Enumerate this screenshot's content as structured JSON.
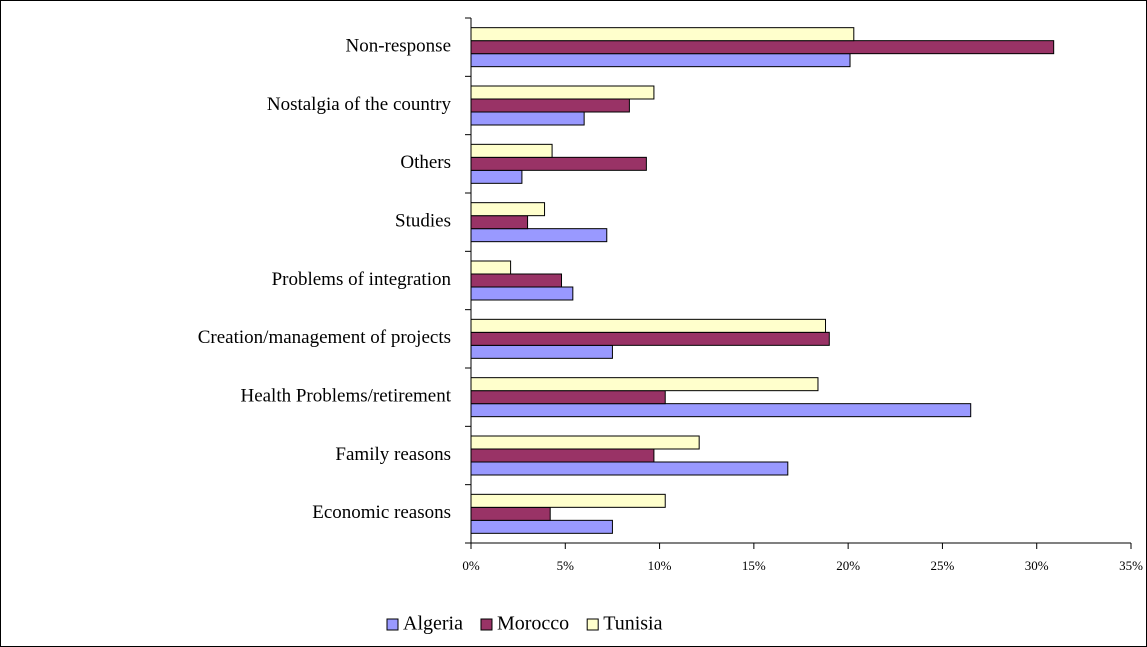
{
  "chart_data": {
    "type": "hbar",
    "categories": [
      "Economic reasons",
      "Family reasons",
      "Health Problems/retirement",
      "Creation/management of projects",
      "Problems of integration",
      "Studies",
      "Others",
      "Nostalgia of the country",
      "Non-response"
    ],
    "series": [
      {
        "name": "Algeria",
        "color": "#9999ff",
        "values": [
          7.5,
          16.8,
          26.5,
          7.5,
          5.4,
          7.2,
          2.7,
          6.0,
          20.1
        ]
      },
      {
        "name": "Morocco",
        "color": "#993366",
        "values": [
          4.2,
          9.7,
          10.3,
          19.0,
          4.8,
          3.0,
          9.3,
          8.4,
          30.9
        ]
      },
      {
        "name": "Tunisia",
        "color": "#ffffcc",
        "values": [
          10.3,
          12.1,
          18.4,
          18.8,
          2.1,
          3.9,
          4.3,
          9.7,
          20.3
        ]
      }
    ],
    "xlim": [
      0,
      35
    ],
    "xticks": [
      {
        "value": 0,
        "label": "0%"
      },
      {
        "value": 5,
        "label": "5%"
      },
      {
        "value": 10,
        "label": "10%"
      },
      {
        "value": 15,
        "label": "15%"
      },
      {
        "value": 20,
        "label": "20%"
      },
      {
        "value": 25,
        "label": "25%"
      },
      {
        "value": 30,
        "label": "30%"
      },
      {
        "value": 35,
        "label": "35%"
      }
    ],
    "grid": false,
    "legend": "bottom"
  }
}
